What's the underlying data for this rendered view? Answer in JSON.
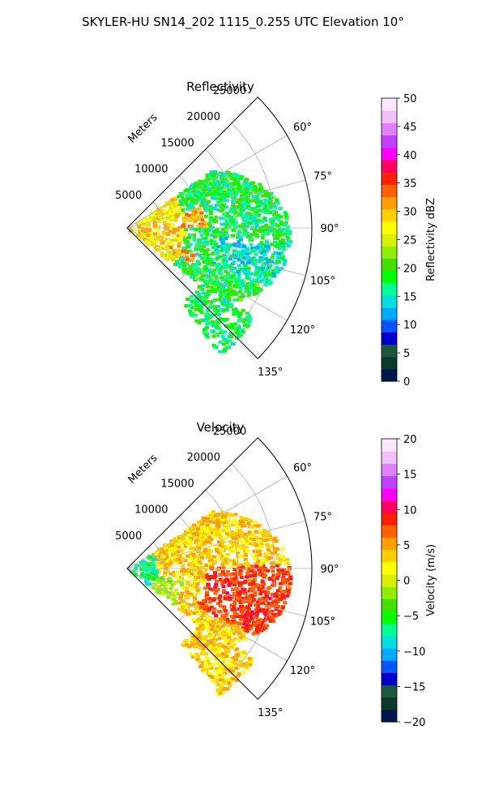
{
  "figure": {
    "suptitle": "SKYLER-HU  SN14_202  1115_0.255 UTC Elevation 10°"
  },
  "chart_data": [
    {
      "type": "heatmap",
      "title": "Reflectivity",
      "projection": "polar sector",
      "theta_ticks": [
        "60°",
        "75°",
        "90°",
        "105°",
        "120°",
        "135°"
      ],
      "theta_range_deg": [
        45,
        135
      ],
      "r_label": "Meters",
      "r_ticks": [
        "5000",
        "10000",
        "15000",
        "20000",
        "25000"
      ],
      "r_range_m": [
        0,
        25000
      ],
      "data_extent_m": 22000,
      "grid": true,
      "colorbar": {
        "label": "Reflectivity dBZ",
        "ticks": [
          "0",
          "5",
          "10",
          "15",
          "20",
          "25",
          "30",
          "35",
          "40",
          "45",
          "50"
        ],
        "range": [
          0,
          50
        ],
        "colors": [
          "#00184a",
          "#0a3a2a",
          "#1a5a3a",
          "#0000cc",
          "#0055ff",
          "#00aaff",
          "#00e0e0",
          "#00ff90",
          "#00ff00",
          "#40e000",
          "#90ee00",
          "#d8f000",
          "#ffff00",
          "#ffd000",
          "#ffa000",
          "#ff6000",
          "#ff2000",
          "#ff0060",
          "#ff00ff",
          "#c040ff",
          "#e080ff",
          "#f0c0f8",
          "#fbe8fb"
        ]
      }
    },
    {
      "type": "heatmap",
      "title": "Velocity",
      "projection": "polar sector",
      "theta_ticks": [
        "60°",
        "75°",
        "90°",
        "105°",
        "120°",
        "135°"
      ],
      "theta_range_deg": [
        45,
        135
      ],
      "r_label": "Meters",
      "r_ticks": [
        "5000",
        "10000",
        "15000",
        "20000",
        "25000"
      ],
      "r_range_m": [
        0,
        25000
      ],
      "data_extent_m": 22000,
      "grid": true,
      "colorbar": {
        "label": "Velocity (m/s)",
        "ticks": [
          "−20",
          "−15",
          "−10",
          "−5",
          "0",
          "5",
          "10",
          "15",
          "20"
        ],
        "range": [
          -20,
          20
        ],
        "colors": [
          "#00184a",
          "#0a3a2a",
          "#1a5a3a",
          "#0000cc",
          "#0055ff",
          "#00aaff",
          "#00e0e0",
          "#00ff90",
          "#00ff00",
          "#40e000",
          "#90ee00",
          "#d8f000",
          "#ffff00",
          "#ffd000",
          "#ffa000",
          "#ff6000",
          "#ff2000",
          "#ff0060",
          "#ff00ff",
          "#c040ff",
          "#e080ff",
          "#f0c0f8",
          "#fbe8fb"
        ]
      }
    }
  ]
}
